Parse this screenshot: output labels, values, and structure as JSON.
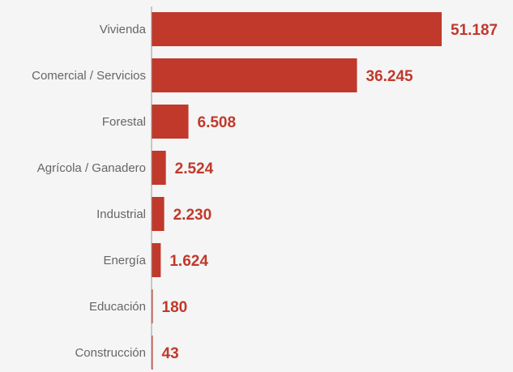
{
  "chart_data": {
    "type": "bar",
    "orientation": "horizontal",
    "title": "",
    "xlabel": "",
    "ylabel": "",
    "categories": [
      "Vivienda",
      "Comercial / Servicios",
      "Forestal",
      "Agrícola / Ganadero",
      "Industrial",
      "Energía",
      "Educación",
      "Construcción"
    ],
    "values": [
      51187,
      36245,
      6508,
      2524,
      2230,
      1624,
      180,
      43
    ],
    "value_labels": [
      "51.187",
      "36.245",
      "6.508",
      "2.524",
      "2.230",
      "1.624",
      "180",
      "43"
    ],
    "xlim": [
      0,
      51187
    ],
    "grid": false,
    "legend": "none",
    "colors": {
      "bar": "#c0392b",
      "value_label": "#c0392b",
      "category_label": "#666666",
      "axis": "#999999",
      "background": "#f5f5f5"
    }
  }
}
